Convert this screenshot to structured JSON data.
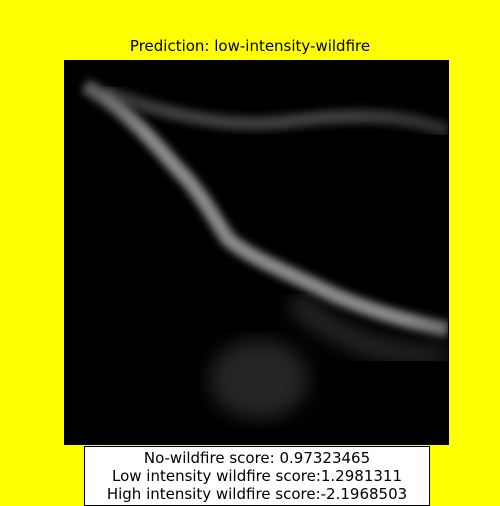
{
  "title": "Prediction: low-intensity-wildfire",
  "scores": {
    "no_wildfire": "No-wildfire score: 0.97323465",
    "low_intensity": "Low intensity wildfire score:1.2981311",
    "high_intensity": "High intensity wildfire score:-2.1968503"
  },
  "colors": {
    "background": "#ffff00",
    "image_dark": "#0b0b0b",
    "river": "#9a9a9a"
  }
}
